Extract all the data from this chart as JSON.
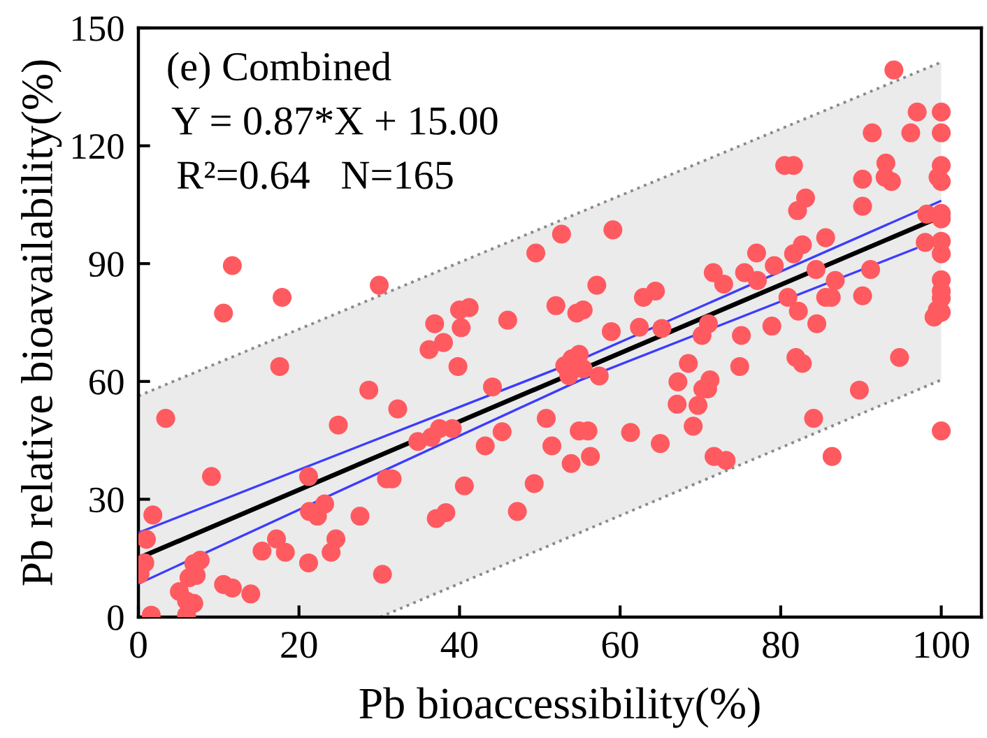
{
  "chart_data": {
    "type": "scatter",
    "xlabel": "Pb bioaccessibility(%)",
    "ylabel": "Pb relative bioavailability(%)",
    "annotations": [
      "(e) Combined",
      "Y = 0.87*X + 15.00",
      "R²=0.64   N=165"
    ],
    "xlim": [
      0,
      105
    ],
    "ylim": [
      0,
      150
    ],
    "xticks": [
      0,
      20,
      40,
      60,
      80,
      100
    ],
    "yticks": [
      0,
      30,
      60,
      90,
      120,
      150
    ],
    "series": [
      {
        "type": "line",
        "color": "#000000",
        "x": [
          0,
          30.1,
          100
        ],
        "values": [
          15,
          41.2,
          102
        ],
        "lower": [
          0,
          0,
          60.4
        ],
        "upper": [
          56.3,
          81.9,
          141.3
        ]
      },
      {
        "type": "line",
        "color": "#8a8a8a",
        "line_style": "dotted",
        "x": [
          0,
          100
        ],
        "values": [
          56.3,
          141.3
        ]
      },
      {
        "type": "line",
        "color": "#8a8a8a",
        "line_style": "dotted",
        "x": [
          30.1,
          100
        ],
        "values": [
          0,
          60.4
        ]
      },
      {
        "type": "line",
        "color": "#3c3cff",
        "x": [
          0,
          55,
          100
        ],
        "values": [
          21.5,
          65.5,
          106
        ]
      },
      {
        "type": "line",
        "color": "#3c3cff",
        "x": [
          0,
          55,
          97
        ],
        "values": [
          8.5,
          60.3,
          94
        ]
      },
      {
        "color": "#ff5a60",
        "marker": "circle",
        "x": [
          1.6,
          0.2,
          0.8,
          1.0,
          1.8,
          3.4,
          9.1,
          17.6,
          5.1,
          6.0,
          6.9,
          6.0,
          6.3,
          7.2,
          6.9,
          7.7,
          10.6,
          11.7,
          14.0,
          15.4,
          17.2,
          18.3,
          21.2,
          21.3,
          22.3,
          23.2,
          21.2,
          24.6,
          24.0,
          24.9,
          27.6,
          28.7,
          30.4,
          30.9,
          31.6,
          32.3,
          34.8,
          36.5,
          37.5,
          39.1,
          37.1,
          38.3,
          36.2,
          38.0,
          39.8,
          40.6,
          43.2,
          44.1,
          45.3,
          47.2,
          49.3,
          50.8,
          51.5,
          11.7,
          10.6,
          17.9,
          30.0,
          36.9,
          40.0,
          41.2,
          40.2,
          46.0,
          49.5,
          52.0,
          52.7,
          94.1,
          97.0,
          100,
          91.4,
          96.2,
          100,
          80.5,
          81.6,
          93.1,
          93.8,
          93.0,
          100,
          99.6,
          100,
          90.2,
          83.1,
          82.1,
          90.2,
          98.2,
          100,
          100,
          59.1,
          85.6,
          82.7,
          81.6,
          77.0,
          98.0,
          100,
          100,
          79.2,
          84.4,
          91.2,
          71.6,
          72.9,
          75.5,
          77.1,
          86.8,
          100,
          100,
          100,
          57.1,
          54.6,
          55.4,
          62.9,
          64.4,
          80.9,
          85.6,
          86.3,
          90.2,
          82.2,
          99.5,
          99.1,
          100,
          58.9,
          62.4,
          65.2,
          71.0,
          70.2,
          75.1,
          78.9,
          84.5,
          53.1,
          54.0,
          54.9,
          53.6,
          55.4,
          57.4,
          67.2,
          68.5,
          67.1,
          69.7,
          71.2,
          70.9,
          70.3,
          74.9,
          81.9,
          82.7,
          94.8,
          89.8,
          84.1,
          100,
          86.4,
          54.9,
          56.0,
          53.9,
          56.3,
          61.3,
          65.0,
          69.1,
          71.7,
          73.2
        ],
        "values": [
          0.5,
          11,
          13.8,
          19.8,
          26,
          50.6,
          35.8,
          63.8,
          6.5,
          4.1,
          3.5,
          0.5,
          10,
          10.6,
          13.6,
          14.5,
          8.3,
          7.4,
          5.9,
          16.8,
          19.9,
          16.5,
          35.8,
          26.9,
          25.7,
          28.8,
          13.8,
          19.9,
          16.5,
          48.9,
          25.7,
          57.8,
          10.9,
          35.2,
          35.2,
          53,
          44.7,
          45.8,
          48,
          48,
          25.1,
          26.6,
          68.1,
          69.9,
          63.8,
          33.4,
          43.6,
          58.6,
          47.2,
          26.9,
          34,
          50.6,
          43.6,
          89.5,
          77.4,
          81.4,
          84.5,
          74.7,
          78.2,
          78.8,
          73.7,
          75.6,
          92.7,
          79.3,
          97.5,
          139.3,
          128.6,
          128.6,
          123.3,
          123.3,
          123.3,
          115,
          115,
          115.6,
          110.9,
          112,
          115,
          112,
          110.9,
          111.5,
          106.7,
          103.5,
          104.6,
          102.6,
          102.8,
          101.4,
          98.6,
          96.6,
          94.8,
          92.5,
          92.7,
          95.4,
          95.7,
          92.5,
          89.5,
          88.5,
          88.5,
          87.7,
          84.8,
          87.7,
          85.7,
          85.7,
          85.9,
          83,
          81.2,
          84.5,
          77.4,
          78.2,
          81.4,
          83,
          81.4,
          81.4,
          81.4,
          81.8,
          77.9,
          78.2,
          76.4,
          77.6,
          72.7,
          73.8,
          73.5,
          74.7,
          71.7,
          71.7,
          74.1,
          74.7,
          64,
          65.8,
          66.9,
          61.5,
          63.2,
          61.4,
          59.9,
          64.6,
          54.2,
          53.9,
          60.4,
          58.1,
          58.1,
          63.8,
          66.1,
          64.6,
          66.1,
          57.8,
          50.6,
          47.4,
          40.9,
          47.4,
          47.4,
          39.1,
          40.9,
          47,
          44.2,
          48.6,
          40.9,
          39.9
        ]
      }
    ]
  }
}
